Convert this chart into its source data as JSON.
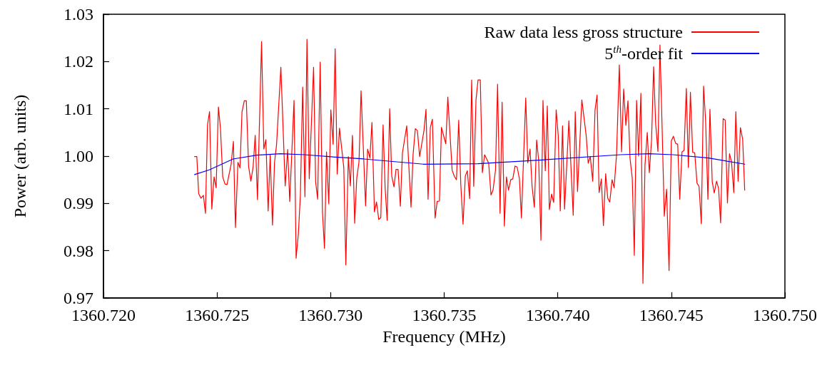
{
  "chart_data": {
    "type": "line",
    "xlabel": "Frequency (MHz)",
    "ylabel": "Power (arb. units)",
    "xlim": [
      1360.72,
      1360.75
    ],
    "ylim": [
      0.97,
      1.03
    ],
    "xticks": [
      {
        "value": 1360.72,
        "label": "1360.720"
      },
      {
        "value": 1360.725,
        "label": "1360.725"
      },
      {
        "value": 1360.73,
        "label": "1360.730"
      },
      {
        "value": 1360.735,
        "label": "1360.735"
      },
      {
        "value": 1360.74,
        "label": "1360.740"
      },
      {
        "value": 1360.745,
        "label": "1360.745"
      },
      {
        "value": 1360.75,
        "label": "1360.750"
      }
    ],
    "yticks": [
      0.97,
      0.98,
      0.99,
      {
        "value": 1,
        "label": "1.00"
      },
      1.01,
      1.02,
      1.03
    ],
    "grid": false,
    "legend": "top right",
    "marker": "none",
    "line_style": "solid",
    "series": [
      {
        "name": "Raw data less gross structure",
        "color": "#ff0000",
        "x": [
          1360.72401,
          1360.72411,
          1360.72419,
          1360.72429,
          1360.7244,
          1360.72449,
          1360.72458,
          1360.72467,
          1360.72477,
          1360.72487,
          1360.72496,
          1360.72506,
          1360.72515,
          1360.72525,
          1360.72535,
          1360.72544,
          1360.72562,
          1360.72572,
          1360.72581,
          1360.72592,
          1360.72601,
          1360.7261,
          1360.7262,
          1360.72629,
          1360.72639,
          1360.72649,
          1360.72659,
          1360.72668,
          1360.72678,
          1360.72696,
          1360.72706,
          1360.72715,
          1360.72725,
          1360.72734,
          1360.72744,
          1360.72753,
          1360.72762,
          1360.72781,
          1360.728,
          1360.72811,
          1360.7282,
          1360.72839,
          1360.72848,
          1360.72858,
          1360.72867,
          1360.72877,
          1360.72887,
          1360.72896,
          1360.72906,
          1360.72925,
          1360.72934,
          1360.72943,
          1360.72954,
          1360.72964,
          1360.72973,
          1360.72982,
          1360.72992,
          1360.73001,
          1360.73011,
          1360.7302,
          1360.73029,
          1360.73039,
          1360.73058,
          1360.73067,
          1360.73078,
          1360.73087,
          1360.73096,
          1360.73106,
          1360.73115,
          1360.73125,
          1360.73134,
          1360.73154,
          1360.73163,
          1360.73173,
          1360.73182,
          1360.73193,
          1360.73202,
          1360.73212,
          1360.73221,
          1360.73231,
          1360.7324,
          1360.73249,
          1360.7326,
          1360.73269,
          1360.73279,
          1360.73288,
          1360.73297,
          1360.73307,
          1360.73316,
          1360.73335,
          1360.73354,
          1360.73363,
          1360.73373,
          1360.73382,
          1360.73392,
          1360.73411,
          1360.7342,
          1360.73429,
          1360.73439,
          1360.73448,
          1360.7346,
          1360.73469,
          1360.73479,
          1360.73488,
          1360.73507,
          1360.73516,
          1360.73535,
          1360.73545,
          1360.73554,
          1360.73564,
          1360.73573,
          1360.73583,
          1360.73593,
          1360.73602,
          1360.73612,
          1360.73621,
          1360.7363,
          1360.7364,
          1360.73649,
          1360.73659,
          1360.73668,
          1360.73678,
          1360.73696,
          1360.73706,
          1360.73715,
          1360.73726,
          1360.73735,
          1360.73746,
          1360.73755,
          1360.73765,
          1360.73774,
          1360.73783,
          1360.73793,
          1360.73802,
          1360.73812,
          1360.73821,
          1360.73831,
          1360.7384,
          1360.73859,
          1360.73868,
          1360.73878,
          1360.73887,
          1360.73897,
          1360.73907,
          1360.73916,
          1360.73926,
          1360.73935,
          1360.73945,
          1360.73954,
          1360.73963,
          1360.73973,
          1360.73982,
          1360.73993,
          1360.74002,
          1360.74011,
          1360.74021,
          1360.7403,
          1360.74049,
          1360.74059,
          1360.74068,
          1360.74077,
          1360.74087,
          1360.74106,
          1360.74125,
          1360.74134,
          1360.74143,
          1360.74154,
          1360.74164,
          1360.74173,
          1360.74182,
          1360.74192,
          1360.74201,
          1360.74211,
          1360.7422,
          1360.74229,
          1360.74239,
          1360.74248,
          1360.74259,
          1360.74271,
          1360.74281,
          1360.7429,
          1360.743,
          1360.74309,
          1360.74318,
          1360.74328,
          1360.74337,
          1360.74347,
          1360.74356,
          1360.74366,
          1360.74375,
          1360.74384,
          1360.74394,
          1360.74403,
          1360.74413,
          1360.74422,
          1360.74431,
          1360.74441,
          1360.7445,
          1360.7446,
          1360.74469,
          1360.74479,
          1360.7449,
          1360.745,
          1360.74509,
          1360.74519,
          1360.74528,
          1360.74537,
          1360.74547,
          1360.74556,
          1360.74566,
          1360.74575,
          1360.74584,
          1360.74594,
          1360.74603,
          1360.74613,
          1360.74622,
          1360.74632,
          1360.74642,
          1360.74651,
          1360.74661,
          1360.7467,
          1360.7468,
          1360.74689,
          1360.74699,
          1360.74708,
          1360.74717,
          1360.74728,
          1360.74737,
          1360.74747,
          1360.74756,
          1360.74765,
          1360.74775,
          1360.74784,
          1360.74794,
          1360.74804,
          1360.74814,
          1360.74823
        ],
        "values": [
          0.9999,
          0.9999,
          0.9921,
          0.9911,
          0.9917,
          0.9879,
          1.0066,
          1.0094,
          0.9888,
          0.9956,
          0.9933,
          1.0104,
          1.0059,
          0.9956,
          0.9941,
          0.994,
          0.9983,
          1.0031,
          0.9849,
          0.9987,
          0.9975,
          1.0094,
          1.0117,
          1.0117,
          0.9978,
          0.9947,
          0.9978,
          1.0044,
          0.9908,
          1.0242,
          1.0015,
          1.0035,
          0.9884,
          1.0003,
          0.9854,
          0.9986,
          1.0024,
          1.0188,
          0.9937,
          1.0014,
          0.9904,
          1.0118,
          0.9784,
          0.9835,
          0.9918,
          1.0146,
          0.9914,
          1.0247,
          0.9952,
          1.0188,
          0.9946,
          0.9909,
          1.0199,
          0.9883,
          0.9805,
          1.0009,
          0.9899,
          1.0098,
          1.0025,
          1.0227,
          0.9962,
          1.0059,
          0.9976,
          0.977,
          0.9999,
          0.9937,
          1.0044,
          0.9858,
          0.9953,
          0.9988,
          1.0138,
          0.9895,
          1.0015,
          0.9996,
          1.0071,
          0.9882,
          0.9903,
          0.9866,
          0.987,
          1.0066,
          0.9933,
          0.9864,
          1.01,
          0.9958,
          0.9935,
          0.9972,
          0.9972,
          0.9894,
          1.0006,
          1.0064,
          0.9892,
          1.0003,
          1.0058,
          1.0054,
          0.9999,
          1.0054,
          1.0099,
          0.9909,
          1.006,
          1.0078,
          0.9869,
          0.9904,
          0.9905,
          1.0061,
          1.0026,
          1.0125,
          0.997,
          0.9957,
          0.995,
          1.0076,
          0.9941,
          0.9856,
          0.9958,
          0.9969,
          0.991,
          1.0161,
          0.9936,
          1.0119,
          1.0161,
          1.0161,
          0.9965,
          1.0003,
          0.9985,
          0.9918,
          0.9928,
          0.9971,
          1.0152,
          0.9879,
          1.0114,
          0.9852,
          0.9956,
          0.9928,
          0.995,
          0.9952,
          0.9979,
          0.9977,
          0.9953,
          0.9869,
          1.0123,
          0.9986,
          1.0015,
          0.9936,
          0.9892,
          1.0034,
          0.9991,
          0.9822,
          1.0118,
          0.9969,
          1.0106,
          0.9887,
          0.992,
          0.9902,
          1.0098,
          1.0044,
          0.9884,
          1.0064,
          0.9888,
          1.0075,
          0.9968,
          0.9875,
          1.0094,
          0.9925,
          1.0119,
          1.0044,
          0.9985,
          0.9999,
          0.9947,
          1.0097,
          1.0129,
          0.9923,
          0.9952,
          0.9853,
          0.9963,
          0.9911,
          0.9903,
          0.995,
          0.9933,
          1.0005,
          1.0193,
          1.0009,
          1.0142,
          1.0065,
          1.0117,
          0.9996,
          0.9953,
          0.979,
          1.0118,
          1,
          1.0133,
          0.9731,
          0.9981,
          1.005,
          0.9965,
          1.0034,
          1.0189,
          1.0069,
          1.001,
          1.0235,
          1.0049,
          0.9873,
          0.993,
          0.9758,
          1.0032,
          1.0042,
          1.0027,
          1.0025,
          0.9909,
          1.0009,
          1.0012,
          1.0143,
          0.9976,
          1.0135,
          1.0008,
          1.0007,
          0.9943,
          0.9936,
          0.9857,
          1.0148,
          1.0074,
          0.9909,
          1.0099,
          0.9946,
          0.9922,
          0.9947,
          0.9932,
          0.9859,
          1.0079,
          1.0076,
          0.9901,
          1.0005,
          0.9988,
          0.9923,
          1.0094,
          0.9947,
          1.006,
          1.0036,
          0.9928
        ]
      },
      {
        "name": "5$^{th}$-order fit",
        "color": "#0000ff",
        "x": [
          1360.72401,
          1360.72466,
          1360.72571,
          1360.72675,
          1360.7278,
          1360.72885,
          1360.73021,
          1360.73147,
          1360.73408,
          1360.73649,
          1360.73932,
          1360.74277,
          1360.74403,
          1360.74507,
          1360.74664,
          1360.74823
        ],
        "values": [
          0.9961,
          0.9971,
          0.9994,
          1.0002,
          1.0005,
          1.0003,
          0.9998,
          0.9994,
          0.9983,
          0.9984,
          0.9992,
          1.0003,
          1.0005,
          1.0003,
          0.9996,
          0.9983
        ]
      }
    ]
  }
}
